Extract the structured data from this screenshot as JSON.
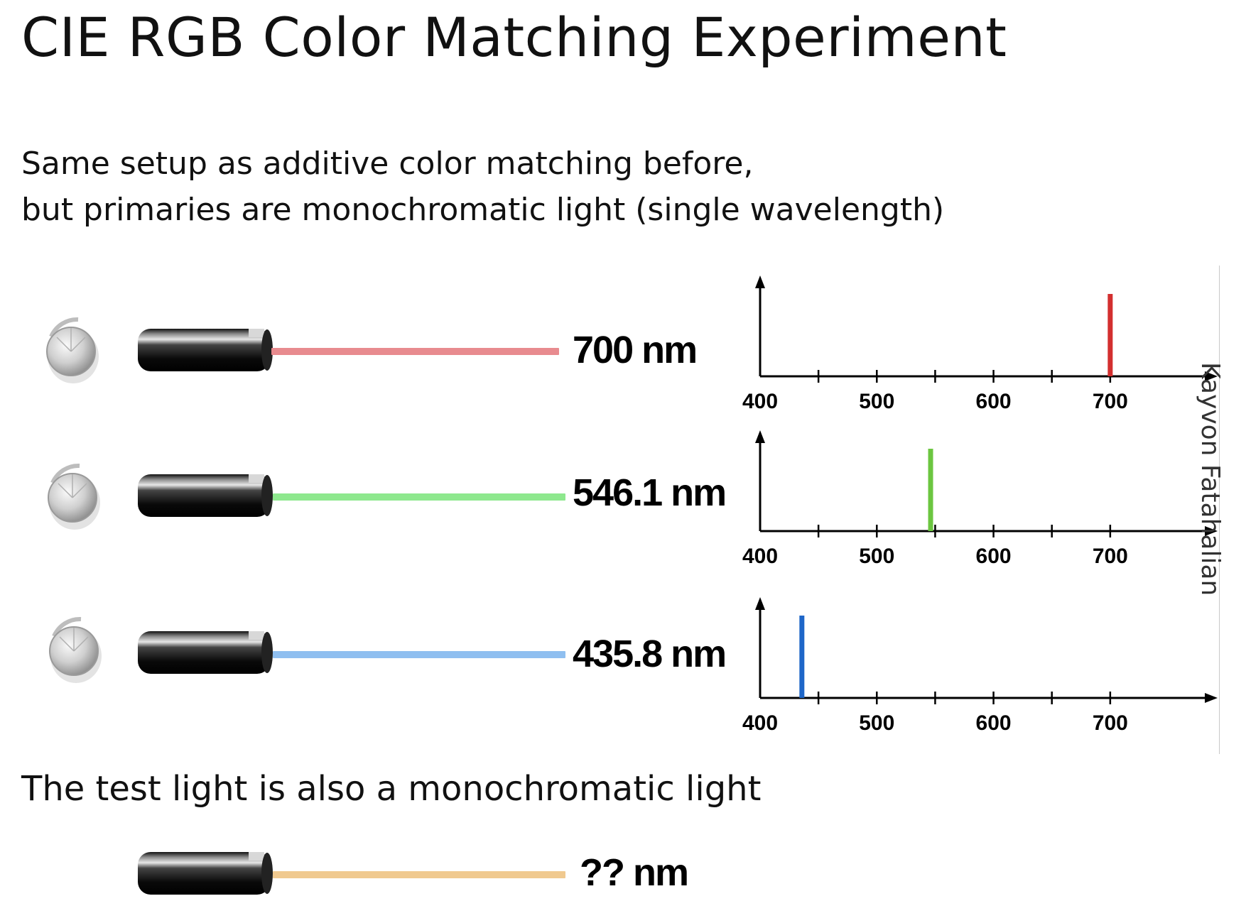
{
  "title": "CIE RGB Color Matching Experiment",
  "subtitle": {
    "line1": "Same setup as additive color matching before,",
    "line2": "but primaries are monochromatic light (single wavelength)"
  },
  "primaries": [
    {
      "label": "700 nm",
      "wavelength": 700,
      "beam_color": "#e88b8f",
      "line_color": "#d32f2f"
    },
    {
      "label": "546.1 nm",
      "wavelength": 546.1,
      "beam_color": "#8ee88e",
      "line_color": "#6cc640"
    },
    {
      "label": "435.8 nm",
      "wavelength": 435.8,
      "beam_color": "#8fbff0",
      "line_color": "#1e66c8"
    }
  ],
  "test_light": {
    "caption": "The test light is also a monochromatic light",
    "label": "?? nm",
    "beam_color": "#f0c98f"
  },
  "spectrum_axis": {
    "xmin": 400,
    "xmax": 750,
    "tick_labels": [
      "400",
      "500",
      "600",
      "700"
    ]
  },
  "credit": "Kayvon Fatahalian"
}
